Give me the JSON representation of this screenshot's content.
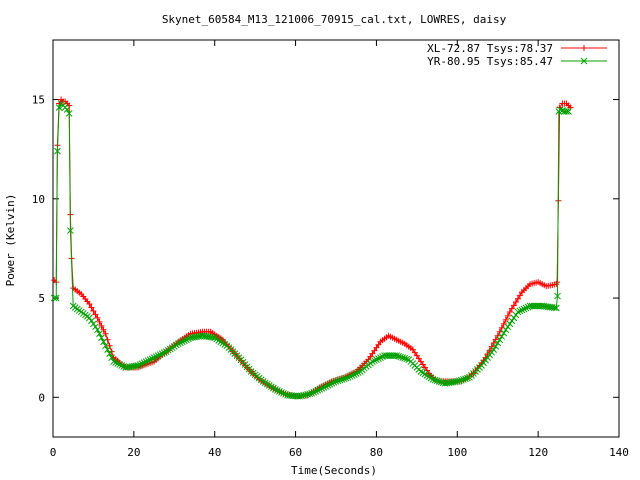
{
  "chart_data": {
    "type": "line",
    "title": "Skynet_60584_M13_121006_70915_cal.txt, LOWRES, daisy",
    "xlabel": "Time(Seconds)",
    "ylabel": "Power (Kelvin)",
    "xlim": [
      0,
      140
    ],
    "ylim": [
      -2,
      18
    ],
    "xticks": [
      0,
      20,
      40,
      60,
      80,
      100,
      120,
      140
    ],
    "yticks": [
      0,
      5,
      10,
      15
    ],
    "grid": false,
    "legend_position": "top-right",
    "series": [
      {
        "name": "XL-72.87 Tsys:78.37",
        "color": "#ff0000",
        "marker": "plus",
        "points": [
          [
            0.3,
            5.9
          ],
          [
            0.8,
            5.8
          ],
          [
            1.1,
            12.7
          ],
          [
            1.5,
            14.8
          ],
          [
            2,
            15
          ],
          [
            2.5,
            14.9
          ],
          [
            3,
            14.9
          ],
          [
            3.5,
            14.8
          ],
          [
            4,
            14.7
          ],
          [
            4.3,
            9.2
          ],
          [
            4.6,
            7
          ],
          [
            5,
            5.5
          ],
          [
            7,
            5.2
          ],
          [
            9,
            4.7
          ],
          [
            11,
            4.0
          ],
          [
            13,
            3.2
          ],
          [
            15,
            2.0
          ],
          [
            18,
            1.5
          ],
          [
            21,
            1.5
          ],
          [
            25,
            1.8
          ],
          [
            28,
            2.3
          ],
          [
            31,
            2.8
          ],
          [
            34,
            3.2
          ],
          [
            37,
            3.3
          ],
          [
            39,
            3.3
          ],
          [
            42,
            2.9
          ],
          [
            45,
            2.2
          ],
          [
            48,
            1.5
          ],
          [
            51,
            0.9
          ],
          [
            54,
            0.5
          ],
          [
            57,
            0.2
          ],
          [
            60,
            0.05
          ],
          [
            63,
            0.1
          ],
          [
            66,
            0.5
          ],
          [
            69,
            0.8
          ],
          [
            72,
            1.0
          ],
          [
            75,
            1.3
          ],
          [
            78,
            1.9
          ],
          [
            81,
            2.8
          ],
          [
            83,
            3.1
          ],
          [
            85,
            2.9
          ],
          [
            87,
            2.7
          ],
          [
            89,
            2.4
          ],
          [
            91,
            1.8
          ],
          [
            93,
            1.2
          ],
          [
            95,
            0.8
          ],
          [
            98,
            0.8
          ],
          [
            101,
            0.8
          ],
          [
            104,
            1.2
          ],
          [
            107,
            2.0
          ],
          [
            110,
            3.1
          ],
          [
            113,
            4.3
          ],
          [
            116,
            5.3
          ],
          [
            118,
            5.7
          ],
          [
            120,
            5.8
          ],
          [
            122,
            5.6
          ],
          [
            124.5,
            5.7
          ],
          [
            124.7,
            5.8
          ],
          [
            125,
            9.9
          ],
          [
            125.3,
            14.6
          ],
          [
            126,
            14.8
          ],
          [
            127,
            14.8
          ],
          [
            128,
            14.6
          ]
        ]
      },
      {
        "name": "YR-80.95 Tsys:85.47",
        "color": "#00a000",
        "marker": "cross",
        "points": [
          [
            0.3,
            5.0
          ],
          [
            0.8,
            5.0
          ],
          [
            1.1,
            12.4
          ],
          [
            1.5,
            14.6
          ],
          [
            2,
            14.8
          ],
          [
            2.5,
            14.7
          ],
          [
            3,
            14.6
          ],
          [
            3.5,
            14.5
          ],
          [
            4,
            14.3
          ],
          [
            4.3,
            8.4
          ],
          [
            5,
            4.6
          ],
          [
            7,
            4.3
          ],
          [
            9,
            4.0
          ],
          [
            11,
            3.4
          ],
          [
            13,
            2.6
          ],
          [
            15,
            1.8
          ],
          [
            18,
            1.5
          ],
          [
            21,
            1.6
          ],
          [
            25,
            2.0
          ],
          [
            28,
            2.3
          ],
          [
            31,
            2.7
          ],
          [
            34,
            3.0
          ],
          [
            37,
            3.1
          ],
          [
            40,
            3.0
          ],
          [
            43,
            2.6
          ],
          [
            46,
            2.0
          ],
          [
            49,
            1.3
          ],
          [
            52,
            0.8
          ],
          [
            55,
            0.4
          ],
          [
            58,
            0.1
          ],
          [
            61,
            0.05
          ],
          [
            64,
            0.2
          ],
          [
            67,
            0.5
          ],
          [
            70,
            0.8
          ],
          [
            73,
            1.0
          ],
          [
            76,
            1.3
          ],
          [
            79,
            1.8
          ],
          [
            82,
            2.1
          ],
          [
            85,
            2.1
          ],
          [
            88,
            1.9
          ],
          [
            91,
            1.3
          ],
          [
            94,
            0.9
          ],
          [
            97,
            0.7
          ],
          [
            100,
            0.8
          ],
          [
            103,
            1.0
          ],
          [
            106,
            1.6
          ],
          [
            109,
            2.4
          ],
          [
            112,
            3.4
          ],
          [
            115,
            4.3
          ],
          [
            118,
            4.6
          ],
          [
            121,
            4.6
          ],
          [
            124.5,
            4.5
          ],
          [
            124.8,
            5.1
          ],
          [
            125.1,
            14.4
          ],
          [
            125.5,
            14.5
          ],
          [
            126.5,
            14.4
          ],
          [
            127.5,
            14.4
          ]
        ]
      }
    ]
  }
}
